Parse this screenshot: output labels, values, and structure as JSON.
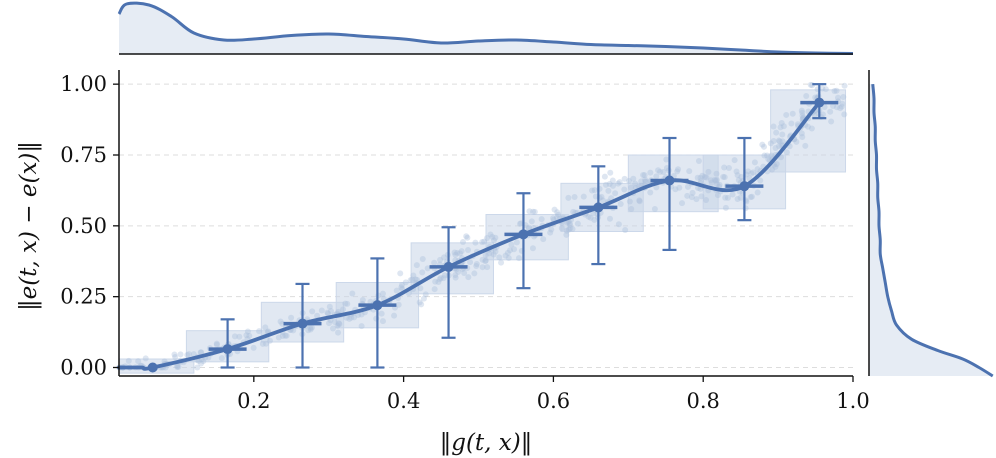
{
  "chart_data": {
    "type": "scatter",
    "title": "",
    "xlabel": "‖g(t, x)‖",
    "ylabel": "‖e(t, x) − e(x)‖",
    "xlim": [
      0.02,
      1.0
    ],
    "ylim": [
      -0.03,
      1.05
    ],
    "x_ticks": [
      "0.2",
      "0.4",
      "0.6",
      "0.8",
      "1.0"
    ],
    "y_ticks": [
      "0.00",
      "0.25",
      "0.50",
      "0.75",
      "1.00"
    ],
    "grid": "horizontal dashed",
    "colors": {
      "series": "#4c72b0",
      "box_fill": "#c9d5e8",
      "scatter": "#a9bcd9",
      "kde_fill": "#e6ecf4"
    },
    "binned_means": {
      "x": [
        0.05,
        0.065,
        0.165,
        0.265,
        0.365,
        0.46,
        0.56,
        0.66,
        0.755,
        0.855,
        0.955
      ],
      "y": [
        0.0,
        0.0,
        0.065,
        0.155,
        0.22,
        0.355,
        0.47,
        0.565,
        0.66,
        0.64,
        0.935
      ]
    },
    "error_bars": [
      {
        "x": 0.165,
        "low": 0.0,
        "high": 0.17
      },
      {
        "x": 0.265,
        "low": 0.0,
        "high": 0.295
      },
      {
        "x": 0.365,
        "low": 0.0,
        "high": 0.385
      },
      {
        "x": 0.46,
        "low": 0.105,
        "high": 0.495
      },
      {
        "x": 0.56,
        "low": 0.28,
        "high": 0.615
      },
      {
        "x": 0.66,
        "low": 0.365,
        "high": 0.71
      },
      {
        "x": 0.755,
        "low": 0.415,
        "high": 0.81
      },
      {
        "x": 0.855,
        "low": 0.52,
        "high": 0.81
      },
      {
        "x": 0.955,
        "low": 0.88,
        "high": 1.0
      }
    ],
    "bin_boxes": [
      {
        "x0": 0.02,
        "x1": 0.12,
        "y0": -0.02,
        "y1": 0.03
      },
      {
        "x0": 0.11,
        "x1": 0.22,
        "y0": 0.02,
        "y1": 0.13
      },
      {
        "x0": 0.21,
        "x1": 0.32,
        "y0": 0.09,
        "y1": 0.23
      },
      {
        "x0": 0.31,
        "x1": 0.42,
        "y0": 0.14,
        "y1": 0.3
      },
      {
        "x0": 0.41,
        "x1": 0.52,
        "y0": 0.26,
        "y1": 0.44
      },
      {
        "x0": 0.51,
        "x1": 0.62,
        "y0": 0.38,
        "y1": 0.54
      },
      {
        "x0": 0.61,
        "x1": 0.72,
        "y0": 0.48,
        "y1": 0.65
      },
      {
        "x0": 0.7,
        "x1": 0.82,
        "y0": 0.55,
        "y1": 0.75
      },
      {
        "x0": 0.8,
        "x1": 0.91,
        "y0": 0.56,
        "y1": 0.75
      },
      {
        "x0": 0.89,
        "x1": 0.99,
        "y0": 0.69,
        "y1": 0.98
      }
    ],
    "scatter_summary": {
      "n_points": 600,
      "x_range": [
        0.02,
        0.99
      ],
      "y_range": [
        0.0,
        1.0
      ]
    },
    "marginal_x_density": {
      "x": [
        0.02,
        0.03,
        0.06,
        0.09,
        0.12,
        0.16,
        0.2,
        0.25,
        0.3,
        0.35,
        0.4,
        0.45,
        0.5,
        0.55,
        0.6,
        0.65,
        0.7,
        0.75,
        0.8,
        0.85,
        0.9,
        0.95,
        1.0
      ],
      "density": [
        0.8,
        1.0,
        0.98,
        0.75,
        0.42,
        0.28,
        0.3,
        0.37,
        0.4,
        0.35,
        0.3,
        0.22,
        0.26,
        0.28,
        0.24,
        0.19,
        0.17,
        0.15,
        0.12,
        0.08,
        0.04,
        0.02,
        0.01
      ]
    },
    "marginal_y_density": {
      "y": [
        -0.03,
        0.0,
        0.03,
        0.06,
        0.1,
        0.15,
        0.2,
        0.25,
        0.3,
        0.35,
        0.4,
        0.45,
        0.5,
        0.55,
        0.6,
        0.65,
        0.7,
        0.75,
        0.8,
        0.85,
        0.9,
        0.95,
        1.0
      ],
      "density": [
        0.99,
        0.88,
        0.75,
        0.55,
        0.34,
        0.22,
        0.18,
        0.15,
        0.13,
        0.11,
        0.09,
        0.09,
        0.08,
        0.08,
        0.07,
        0.07,
        0.06,
        0.06,
        0.05,
        0.05,
        0.04,
        0.04,
        0.03
      ]
    }
  }
}
